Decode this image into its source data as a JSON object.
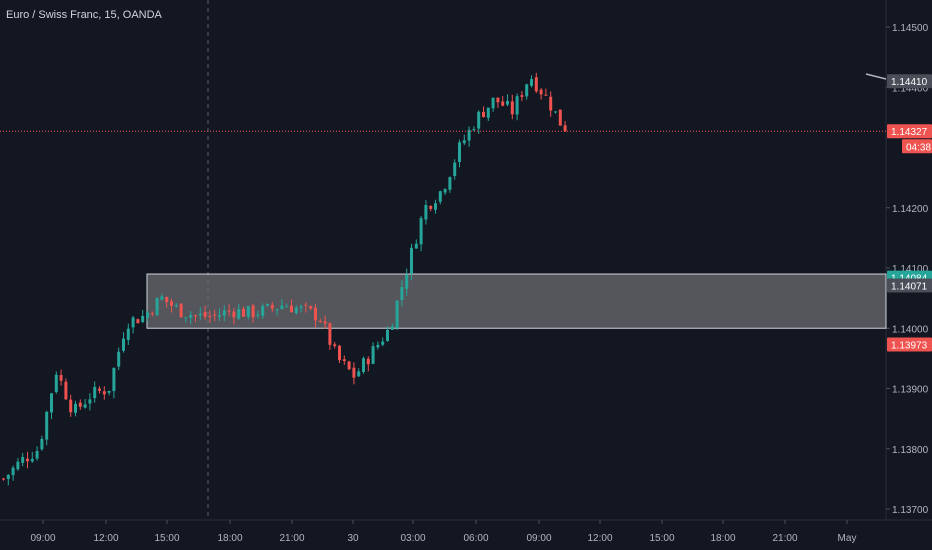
{
  "header": {
    "title": "Euro / Swiss Franc, 15, OANDA"
  },
  "colors": {
    "background": "#131722",
    "up": "#26a69a",
    "down": "#ef5350",
    "axis_text": "#b2b5be",
    "grid": "#1e222d",
    "zone_fill": "#6b6c70",
    "zone_stroke": "#d1d4dc",
    "price_line": "#ef5350",
    "crosshair": "#434651"
  },
  "chart_data": {
    "type": "candlestick",
    "title": "Euro / Swiss Franc, 15, OANDA",
    "ylim": [
      1.1368,
      1.1458
    ],
    "y_ticks": [
      "1.14500",
      "1.14400",
      "1.14200",
      "1.14100",
      "1.14000",
      "1.13900",
      "1.13800",
      "1.13700"
    ],
    "x_ticks": [
      "09:00",
      "12:00",
      "15:00",
      "18:00",
      "21:00",
      "30",
      "03:00",
      "06:00",
      "09:00",
      "12:00",
      "15:00",
      "18:00",
      "21:00",
      "May"
    ],
    "zone": {
      "top": 1.1409,
      "bottom": 1.14
    },
    "price_labels": [
      {
        "value": "1.14410",
        "price": 1.1441,
        "color": "#4a4e58",
        "text_color": "#ffffff"
      },
      {
        "value": "1.14327",
        "price": 1.14327,
        "color": "#ef5350",
        "text_color": "#ffffff"
      },
      {
        "value": "04:38",
        "price": 1.14302,
        "color": "#ef5350",
        "text_color": "#ffffff"
      },
      {
        "value": "1.14084",
        "price": 1.14084,
        "color": "#26a69a",
        "text_color": "#ffffff"
      },
      {
        "value": "1.14071",
        "price": 1.14071,
        "color": "#4a4e58",
        "text_color": "#ffffff"
      },
      {
        "value": "1.13973",
        "price": 1.13973,
        "color": "#ef5350",
        "text_color": "#ffffff"
      }
    ],
    "last_price": 1.14327,
    "waypoints": [
      1.1375,
      1.1378,
      1.138,
      1.1393,
      1.1386,
      1.1389,
      1.139,
      1.1401,
      1.1402,
      1.1405,
      1.1403,
      1.1402,
      1.1402,
      1.1403,
      1.14025,
      1.1403,
      1.1404,
      1.1403,
      1.1402,
      1.1395,
      1.1392,
      1.1396,
      1.14,
      1.141,
      1.142,
      1.1423,
      1.143,
      1.1435,
      1.1438,
      1.1436,
      1.1442,
      1.1438,
      1.14327
    ]
  }
}
